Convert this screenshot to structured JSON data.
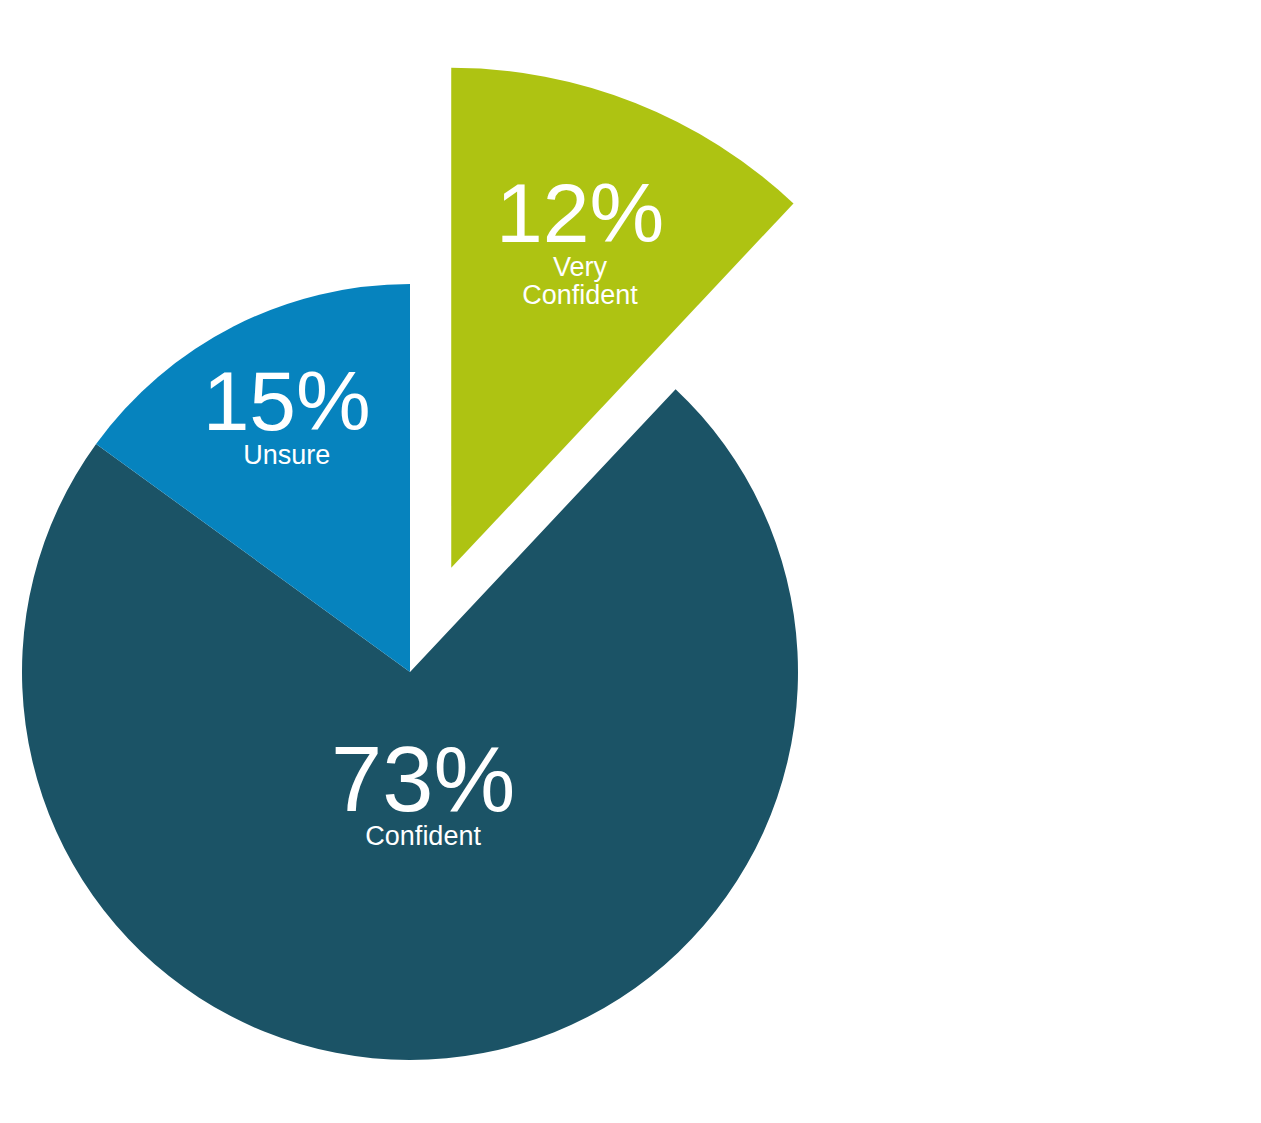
{
  "chart_data": {
    "type": "pie",
    "categories": [
      "Very Confident",
      "Confident",
      "Unsure"
    ],
    "values": [
      12,
      73,
      15
    ],
    "value_labels": [
      "12%",
      "73%",
      "15%"
    ],
    "colors": [
      "#aec312",
      "#1b5366",
      "#0683be"
    ],
    "data_labels": true
  }
}
